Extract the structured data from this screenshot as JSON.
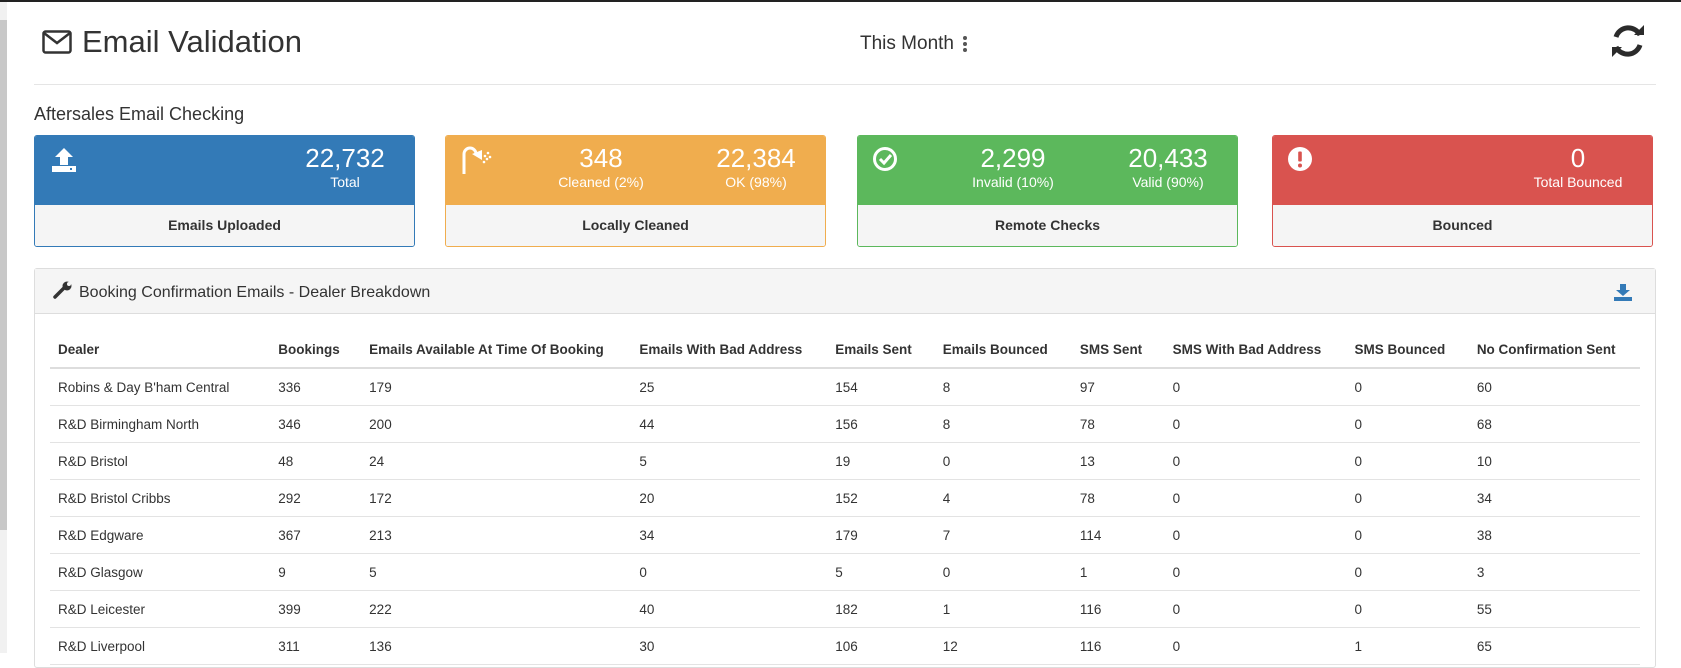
{
  "header": {
    "title": "Email Validation",
    "period_label": "This Month"
  },
  "section_title": "Aftersales Email Checking",
  "cards": {
    "uploaded": {
      "value": "22,732",
      "label": "Total",
      "footer": "Emails Uploaded",
      "color": "#337ab7"
    },
    "cleaned": {
      "cleaned_value": "348",
      "cleaned_label": "Cleaned (2%)",
      "ok_value": "22,384",
      "ok_label": "OK (98%)",
      "footer": "Locally Cleaned",
      "color": "#f0ad4e"
    },
    "remote": {
      "invalid_value": "2,299",
      "invalid_label": "Invalid (10%)",
      "valid_value": "20,433",
      "valid_label": "Valid (90%)",
      "footer": "Remote Checks",
      "color": "#5cb85c"
    },
    "bounced": {
      "value": "0",
      "label": "Total Bounced",
      "footer": "Bounced",
      "color": "#d9534f"
    }
  },
  "panel": {
    "title": "Booking Confirmation Emails - Dealer Breakdown"
  },
  "table": {
    "columns": [
      "Dealer",
      "Bookings",
      "Emails Available At Time Of Booking",
      "Emails With Bad Address",
      "Emails Sent",
      "Emails Bounced",
      "SMS Sent",
      "SMS With Bad Address",
      "SMS Bounced",
      "No Confirmation Sent"
    ],
    "rows": [
      [
        "Robins & Day B'ham Central",
        "336",
        "179",
        "25",
        "154",
        "8",
        "97",
        "0",
        "0",
        "60"
      ],
      [
        "R&D Birmingham North",
        "346",
        "200",
        "44",
        "156",
        "8",
        "78",
        "0",
        "0",
        "68"
      ],
      [
        "R&D Bristol",
        "48",
        "24",
        "5",
        "19",
        "0",
        "13",
        "0",
        "0",
        "10"
      ],
      [
        "R&D Bristol Cribbs",
        "292",
        "172",
        "20",
        "152",
        "4",
        "78",
        "0",
        "0",
        "34"
      ],
      [
        "R&D Edgware",
        "367",
        "213",
        "34",
        "179",
        "7",
        "114",
        "0",
        "0",
        "38"
      ],
      [
        "R&D Glasgow",
        "9",
        "5",
        "0",
        "5",
        "0",
        "1",
        "0",
        "0",
        "3"
      ],
      [
        "R&D Leicester",
        "399",
        "222",
        "40",
        "182",
        "1",
        "116",
        "0",
        "0",
        "55"
      ],
      [
        "R&D Liverpool",
        "311",
        "136",
        "30",
        "106",
        "12",
        "116",
        "0",
        "1",
        "65"
      ]
    ]
  }
}
